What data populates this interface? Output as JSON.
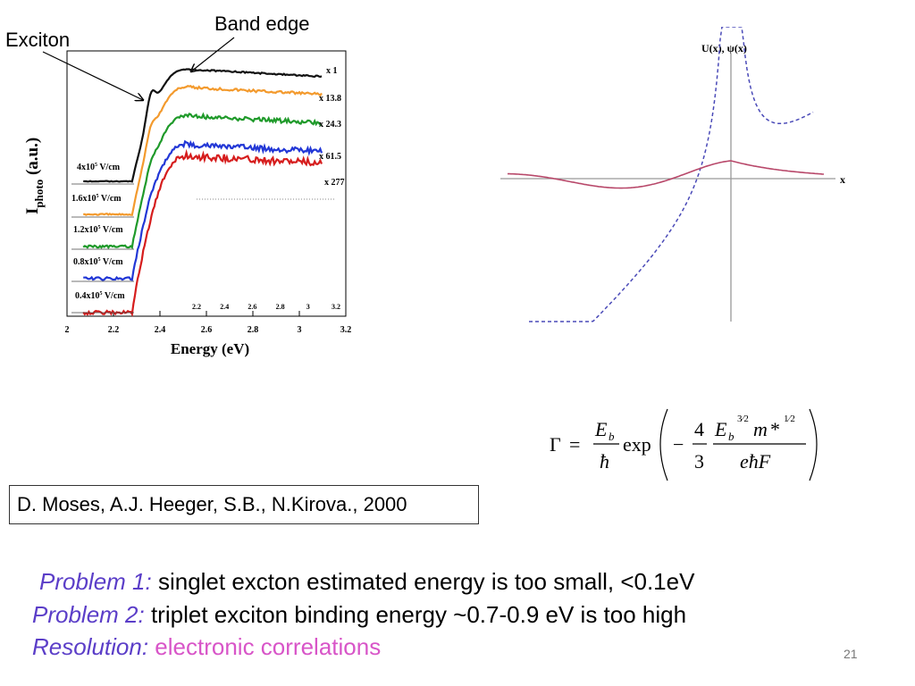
{
  "slide": {
    "number": "21",
    "labels": {
      "band_edge": "Band edge",
      "exciton": "Exciton"
    },
    "citation": "D. Moses, A.J. Heeger, S.B., N.Kirova., 2000",
    "problems": [
      {
        "key": "Problem 1:",
        "text": " singlet excton estimated energy is too small, <0.1eV"
      },
      {
        "key": "Problem 2:",
        "text": " triplet exciton binding energy ~0.7-0.9 eV is too high"
      },
      {
        "key": "Resolution:",
        "text": " electronic correlations"
      }
    ],
    "colors": {
      "accent": "#5b3ec8",
      "pink": "#d855c8"
    }
  },
  "chart_data": [
    {
      "type": "line",
      "title": "",
      "xlabel": "Energy (eV)",
      "ylabel": "I_photo (a.u.)",
      "xlim": [
        2,
        3.2
      ],
      "x_ticks": [
        "2",
        "2.2",
        "2.4",
        "2.6",
        "2.8",
        "3",
        "3.2"
      ],
      "inner_x_ticks": [
        "2.2",
        "2.4",
        "2.6",
        "2.8",
        "3",
        "3.2"
      ],
      "series": [
        {
          "name": "4x10^5 V/cm",
          "field_label": "4x10",
          "scale": "x 1",
          "color": "#111111"
        },
        {
          "name": "1.6x10^5 V/cm",
          "field_label": "1.6x10",
          "scale": "x 13.8",
          "color": "#f39a2d"
        },
        {
          "name": "1.2x10^5 V/cm",
          "field_label": "1.2x10",
          "scale": "x 24.3",
          "color": "#1f9a2a"
        },
        {
          "name": "0.8x10^5 V/cm",
          "field_label": "0.8x10",
          "scale": "x 61.5",
          "color": "#2237d6"
        },
        {
          "name": "0.4x10^5 V/cm",
          "field_label": "0.4x10",
          "scale": "x 277",
          "color": "#d61d1d"
        }
      ],
      "exponent": "5",
      "unit": " V/cm"
    },
    {
      "type": "line",
      "title": "U(x), ψ(x)",
      "xlabel": "x",
      "series": [
        {
          "name": "U(x)",
          "style": "dashed",
          "color": "#4a4ab8"
        },
        {
          "name": "ψ(x)",
          "style": "solid",
          "color": "#b8486a"
        }
      ]
    }
  ],
  "formula": {
    "gamma": "Γ",
    "eq": "=",
    "Eb": "E",
    "b": "b",
    "hbar": "ħ",
    "exp": "exp",
    "minus": "−",
    "four": "4",
    "three": "3",
    "m": "m",
    "star": "*",
    "ehF": "eħF",
    "p32": "3⁄2",
    "p12": "1⁄2"
  }
}
